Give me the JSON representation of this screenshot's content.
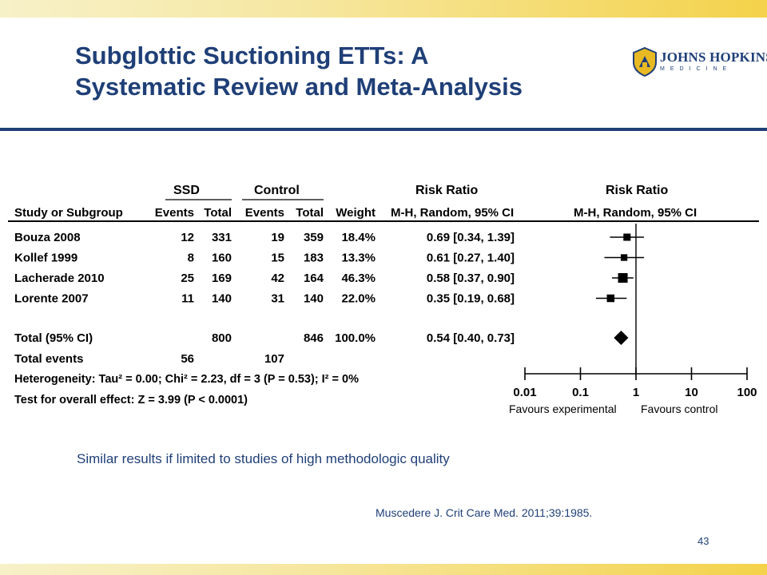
{
  "slide": {
    "title_line1": "Subglottic Suctioning ETTs: A",
    "title_line2": "Systematic Review and Meta-Analysis",
    "logo_text": "JOHNS HOPKINS",
    "logo_sub": "MEDICINE",
    "note": "Similar results if limited to studies of high methodologic quality",
    "citation": "Muscedere J. Crit Care Med.  2011;39:1985.",
    "page_number": "43"
  },
  "chart_data": {
    "type": "forest",
    "headers": {
      "ssd": "SSD",
      "control": "Control",
      "risk_ratio": "Risk Ratio",
      "risk_ratio_plot": "Risk Ratio",
      "study": "Study or Subgroup",
      "events_1": "Events",
      "total_1": "Total",
      "events_2": "Events",
      "total_2": "Total",
      "weight": "Weight",
      "method": "M-H, Random, 95% CI",
      "method_plot": "M-H, Random, 95% CI"
    },
    "studies": [
      {
        "name": "Bouza 2008",
        "ssd_events": "12",
        "ssd_total": "331",
        "ctrl_events": "19",
        "ctrl_total": "359",
        "weight": "18.4%",
        "ci_text": "0.69 [0.34, 1.39]",
        "rr": 0.69,
        "lo": 0.34,
        "hi": 1.39,
        "w": 18.4
      },
      {
        "name": "Kollef 1999",
        "ssd_events": "8",
        "ssd_total": "160",
        "ctrl_events": "15",
        "ctrl_total": "183",
        "weight": "13.3%",
        "ci_text": "0.61 [0.27, 1.40]",
        "rr": 0.61,
        "lo": 0.27,
        "hi": 1.4,
        "w": 13.3
      },
      {
        "name": "Lacherade 2010",
        "ssd_events": "25",
        "ssd_total": "169",
        "ctrl_events": "42",
        "ctrl_total": "164",
        "weight": "46.3%",
        "ci_text": "0.58 [0.37, 0.90]",
        "rr": 0.58,
        "lo": 0.37,
        "hi": 0.9,
        "w": 46.3
      },
      {
        "name": "Lorente 2007",
        "ssd_events": "11",
        "ssd_total": "140",
        "ctrl_events": "31",
        "ctrl_total": "140",
        "weight": "22.0%",
        "ci_text": "0.35 [0.19, 0.68]",
        "rr": 0.35,
        "lo": 0.19,
        "hi": 0.68,
        "w": 22.0
      }
    ],
    "total": {
      "name": "Total (95% CI)",
      "ssd_total": "800",
      "ctrl_total": "846",
      "weight": "100.0%",
      "ci_text": "0.54 [0.40, 0.73]",
      "rr": 0.54,
      "lo": 0.4,
      "hi": 0.73
    },
    "total_events": {
      "label": "Total events",
      "ssd": "56",
      "ctrl": "107"
    },
    "heterogeneity": "Heterogeneity: Tau² = 0.00; Chi² = 2.23, df = 3 (P = 0.53); I² = 0%",
    "overall_effect": "Test for overall effect: Z = 3.99 (P < 0.0001)",
    "x_axis": {
      "scale": "log",
      "ticks": [
        "0.01",
        "0.1",
        "1",
        "10",
        "100"
      ],
      "tick_values": [
        0.01,
        0.1,
        1,
        10,
        100
      ],
      "null_value": 1
    },
    "favours_left": "Favours experimental",
    "favours_right": "Favours control"
  }
}
